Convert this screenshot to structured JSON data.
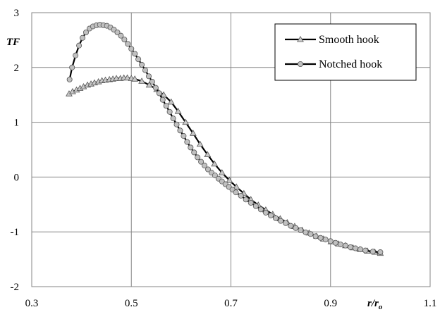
{
  "chart_data": {
    "type": "line",
    "title": "",
    "xlabel": "r/r",
    "xlabel_sub": "o",
    "ylabel": "TF",
    "xlim": [
      0.3,
      1.1
    ],
    "ylim": [
      -2,
      3
    ],
    "xticks": [
      0.3,
      0.5,
      0.7,
      0.9,
      1.1
    ],
    "xtick_labels": [
      "0.3",
      "0.5",
      "0.7",
      "0.9",
      "1.1"
    ],
    "yticks": [
      -2,
      -1,
      0,
      1,
      2,
      3
    ],
    "ytick_labels": [
      "-2",
      "-1",
      "0",
      "1",
      "2",
      "3"
    ],
    "grid": true,
    "legend_position": "top-right",
    "series": [
      {
        "name": "Smooth hook",
        "marker": "triangle",
        "marker_fill": "#c8c8c8",
        "line_color": "#000000",
        "x": [
          0.375,
          0.382,
          0.39,
          0.397,
          0.404,
          0.412,
          0.419,
          0.426,
          0.434,
          0.441,
          0.448,
          0.456,
          0.463,
          0.47,
          0.478,
          0.485,
          0.492,
          0.5,
          0.507,
          0.521,
          0.536,
          0.551,
          0.565,
          0.58,
          0.594,
          0.609,
          0.624,
          0.638,
          0.653,
          0.667,
          0.682,
          0.697,
          0.711,
          0.726,
          0.74,
          0.755,
          0.77,
          0.784,
          0.799,
          0.813,
          0.828,
          0.843,
          0.857,
          0.872,
          0.886,
          0.901,
          0.916,
          0.93,
          0.945,
          0.959,
          0.974,
          0.989,
          1.0
        ],
        "y": [
          1.52,
          1.56,
          1.59,
          1.62,
          1.65,
          1.68,
          1.7,
          1.72,
          1.74,
          1.76,
          1.77,
          1.78,
          1.79,
          1.8,
          1.8,
          1.81,
          1.81,
          1.8,
          1.79,
          1.75,
          1.68,
          1.6,
          1.5,
          1.37,
          1.2,
          1.0,
          0.8,
          0.6,
          0.41,
          0.24,
          0.08,
          -0.06,
          -0.18,
          -0.3,
          -0.41,
          -0.51,
          -0.6,
          -0.68,
          -0.76,
          -0.83,
          -0.9,
          -0.97,
          -1.02,
          -1.08,
          -1.13,
          -1.18,
          -1.22,
          -1.25,
          -1.29,
          -1.32,
          -1.35,
          -1.37,
          -1.39
        ]
      },
      {
        "name": "Notched hook",
        "marker": "circle",
        "marker_fill": "#c0c0c0",
        "line_color": "#000000",
        "x": [
          0.376,
          0.381,
          0.388,
          0.395,
          0.402,
          0.409,
          0.416,
          0.423,
          0.43,
          0.437,
          0.444,
          0.451,
          0.458,
          0.465,
          0.472,
          0.479,
          0.486,
          0.493,
          0.5,
          0.507,
          0.514,
          0.521,
          0.528,
          0.535,
          0.542,
          0.549,
          0.556,
          0.563,
          0.57,
          0.577,
          0.584,
          0.591,
          0.598,
          0.605,
          0.612,
          0.619,
          0.626,
          0.633,
          0.64,
          0.647,
          0.654,
          0.661,
          0.668,
          0.675,
          0.682,
          0.689,
          0.696,
          0.703,
          0.71,
          0.72,
          0.73,
          0.74,
          0.75,
          0.76,
          0.77,
          0.78,
          0.79,
          0.8,
          0.81,
          0.82,
          0.83,
          0.84,
          0.85,
          0.86,
          0.87,
          0.88,
          0.89,
          0.9,
          0.91,
          0.92,
          0.93,
          0.94,
          0.95,
          0.96,
          0.97,
          0.985,
          1.0
        ],
        "y": [
          1.78,
          2.0,
          2.22,
          2.4,
          2.54,
          2.64,
          2.71,
          2.75,
          2.77,
          2.78,
          2.77,
          2.76,
          2.73,
          2.69,
          2.64,
          2.58,
          2.51,
          2.43,
          2.34,
          2.25,
          2.15,
          2.05,
          1.95,
          1.84,
          1.74,
          1.63,
          1.53,
          1.41,
          1.3,
          1.19,
          1.07,
          0.96,
          0.85,
          0.75,
          0.64,
          0.54,
          0.45,
          0.36,
          0.28,
          0.21,
          0.14,
          0.08,
          0.03,
          -0.03,
          -0.08,
          -0.13,
          -0.18,
          -0.23,
          -0.28,
          -0.34,
          -0.41,
          -0.47,
          -0.53,
          -0.59,
          -0.65,
          -0.7,
          -0.75,
          -0.8,
          -0.84,
          -0.89,
          -0.93,
          -0.97,
          -1.01,
          -1.04,
          -1.08,
          -1.11,
          -1.14,
          -1.17,
          -1.2,
          -1.23,
          -1.25,
          -1.28,
          -1.3,
          -1.32,
          -1.34,
          -1.36,
          -1.37
        ]
      }
    ]
  }
}
